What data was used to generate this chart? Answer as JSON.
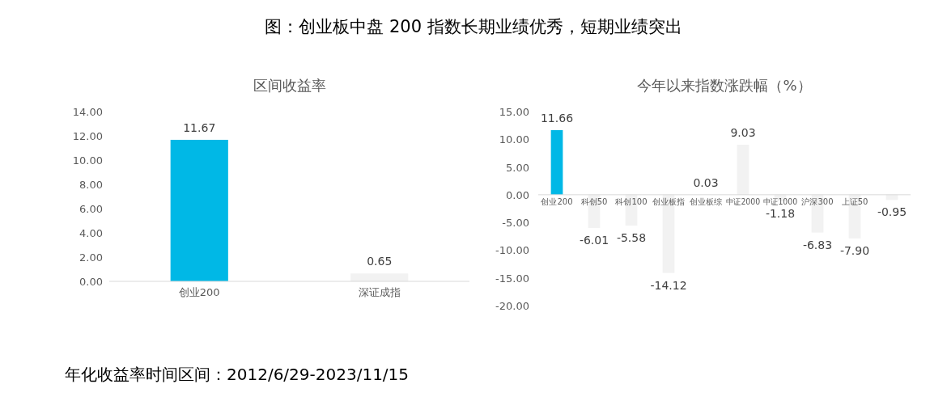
{
  "chart_data": [
    {
      "type": "bar",
      "title": "区间收益率",
      "categories": [
        "创业200",
        "深证成指"
      ],
      "values": [
        11.67,
        0.65
      ],
      "colors": [
        "#00b8e6",
        "#f2f2f2"
      ],
      "value_labels": [
        "11.67",
        "0.65"
      ],
      "ylim": [
        0,
        14
      ],
      "yticks": [
        {
          "value": 0,
          "label": "0.00"
        },
        {
          "value": 2,
          "label": "2.00"
        },
        {
          "value": 4,
          "label": "4.00"
        },
        {
          "value": 6,
          "label": "6.00"
        },
        {
          "value": 8,
          "label": "8.00"
        },
        {
          "value": 10,
          "label": "10.00"
        },
        {
          "value": 12,
          "label": "12.00"
        },
        {
          "value": 14,
          "label": "14.00"
        }
      ],
      "grid": false,
      "annotations": [
        "图：创业板中盘 200 指数长期业绩优秀，短期业绩突出",
        "年化收益率时间区间：2012/6/29-2023/11/15"
      ]
    },
    {
      "type": "bar",
      "title": "今年以来指数涨跌幅（%）",
      "categories": [
        "创业200",
        "科创50",
        "科创100",
        "创业板指",
        "创业板综",
        "中证2000",
        "中证1000",
        "沪深300",
        "上证50",
        null
      ],
      "values": [
        11.66,
        -6.01,
        -5.58,
        -14.12,
        0.03,
        9.03,
        -1.18,
        -6.83,
        -7.9,
        -0.95
      ],
      "colors": [
        "#00b8e6",
        "#f2f2f2",
        "#f2f2f2",
        "#f2f2f2",
        "#f2f2f2",
        "#f2f2f2",
        "#f2f2f2",
        "#f2f2f2",
        "#f2f2f2",
        "#f2f2f2"
      ],
      "value_labels": [
        "11.66",
        "-6.01",
        "-5.58",
        "-14.12",
        "0.03",
        "9.03",
        "-1.18",
        "-6.83",
        "-7.90",
        "-0.95"
      ],
      "ylim": [
        -20,
        15
      ],
      "yticks": [
        {
          "value": -20,
          "label": "-20.00"
        },
        {
          "value": -15,
          "label": "-15.00"
        },
        {
          "value": -10,
          "label": "-10.00"
        },
        {
          "value": -5,
          "label": "-5.00"
        },
        {
          "value": 0,
          "label": "0.00"
        },
        {
          "value": 5,
          "label": "5.00"
        },
        {
          "value": 10,
          "label": "10.00"
        },
        {
          "value": 15,
          "label": "15.00"
        }
      ],
      "grid": false
    }
  ]
}
